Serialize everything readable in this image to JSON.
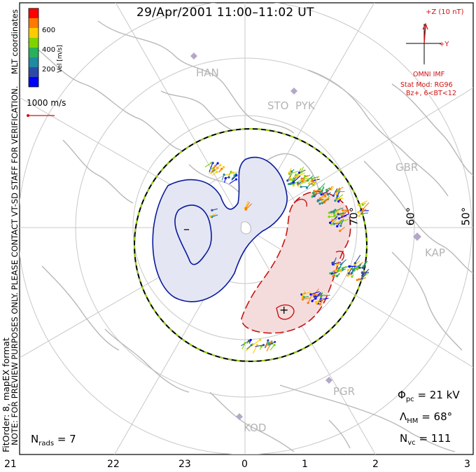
{
  "title": "29/Apr/2001  11:00–11:02  UT",
  "side_left_top": "MLT coordinates",
  "side_left_notice": "NOTE: FOR PREVIEW PURPOSES ONLY. PLEASE CONTACT VT-SD STAFF FOR VERIFICATION.",
  "side_left_bottom": "FitOrder: 8, mapEX format",
  "colorbar": {
    "label": "Vel [m/s]",
    "ticks": [
      "600",
      "400",
      "200"
    ],
    "colors": [
      "#ff0000",
      "#ff7a00",
      "#ffcc00",
      "#7fd400",
      "#29b05a",
      "#1f8aa0",
      "#2d4aa8",
      "#0000ff"
    ]
  },
  "vector_scale": "1000 m/s",
  "imf": {
    "z_label": "+Z (10 nT)",
    "y_label": "+Y",
    "source": "OMNI IMF",
    "model": "Stat Mod: RG96",
    "condition": "Bz+, 6<BT<12"
  },
  "stations": [
    "HAN",
    "STO",
    "PYK",
    "GBR",
    "KAP",
    "PGR",
    "KOD"
  ],
  "latitudes": [
    "70°",
    "60°",
    "50°"
  ],
  "mlt_ticks": [
    "21",
    "22",
    "23",
    "0",
    "1",
    "2",
    "3"
  ],
  "cell_markers": {
    "min": "–",
    "max": "+"
  },
  "stats": {
    "phi_label": "Φ",
    "phi_sub": "pc",
    "phi_value": "= 21 kV",
    "lambda_label": "Λ",
    "lambda_sub": "HM",
    "lambda_value": "= 68°",
    "nvc_label": "N",
    "nvc_sub": "vc",
    "nvc_value": "= 111",
    "nrads_label": "N",
    "nrads_sub": "rads",
    "nrads_value": "= 7"
  }
}
